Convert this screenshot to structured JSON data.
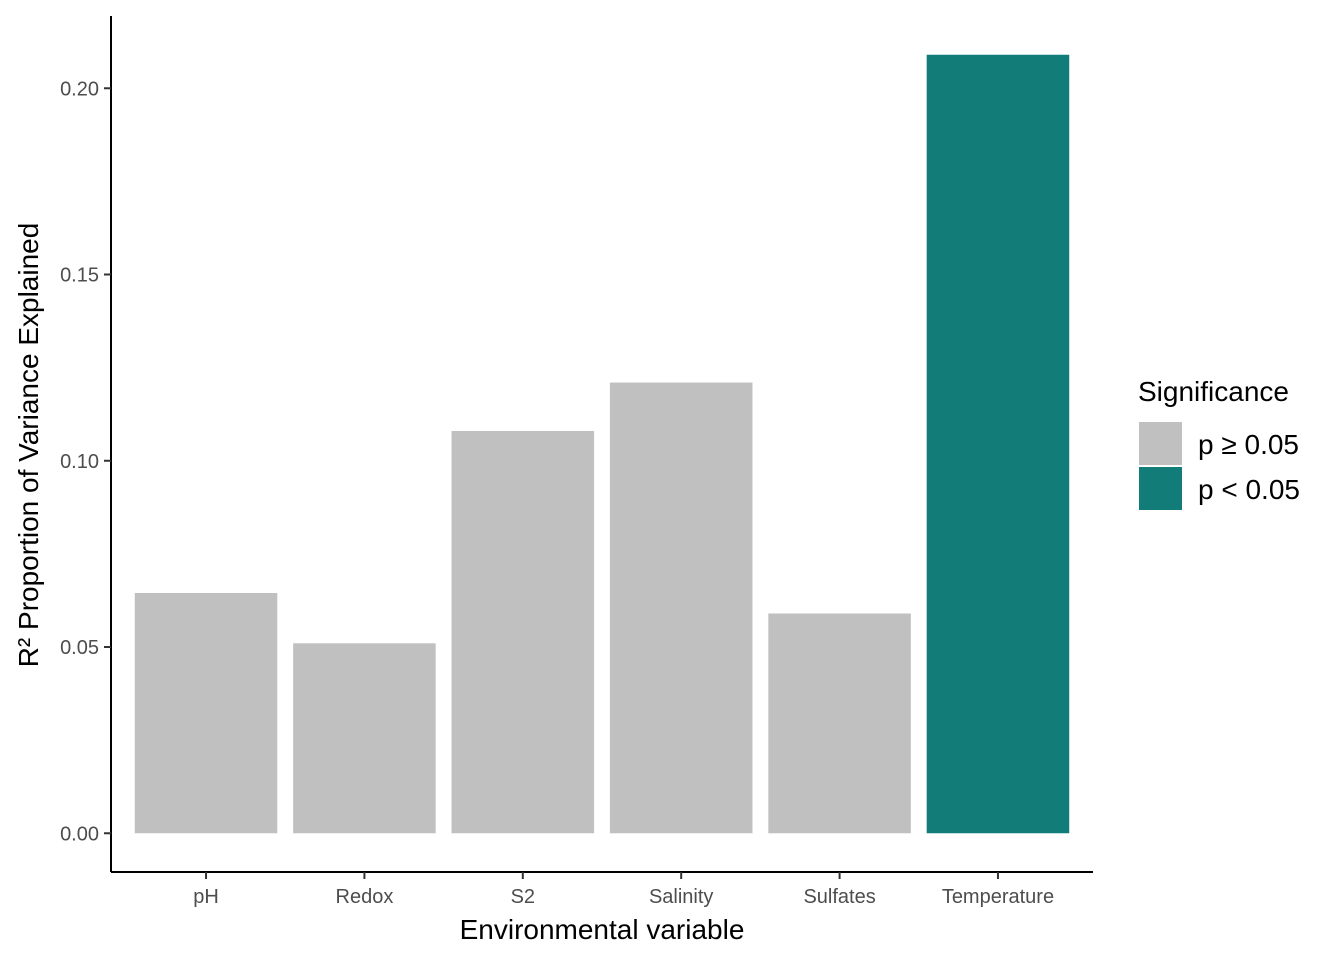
{
  "chart_data": {
    "type": "bar",
    "categories": [
      "pH",
      "Redox",
      "S2",
      "Salinity",
      "Sulfates",
      "Temperature"
    ],
    "values": [
      0.0645,
      0.051,
      0.108,
      0.121,
      0.059,
      0.209
    ],
    "significance": [
      "p ≥ 0.05",
      "p ≥ 0.05",
      "p ≥ 0.05",
      "p ≥ 0.05",
      "p ≥ 0.05",
      "p < 0.05"
    ],
    "xlabel": "Environmental variable",
    "ylabel": "R² Proportion of Variance Explained",
    "ylim": [
      -0.0104,
      0.2194
    ],
    "yticks": [
      0.0,
      0.05,
      0.1,
      0.15,
      0.2
    ],
    "ytick_labels": [
      "0.00",
      "0.05",
      "0.10",
      "0.15",
      "0.20"
    ],
    "grid": false,
    "legend": {
      "title": "Significance",
      "position": "right",
      "entries": [
        {
          "label": "p ≥ 0.05",
          "color": "#c0c0c0"
        },
        {
          "label": "p < 0.05",
          "color": "#127c79"
        }
      ]
    }
  }
}
